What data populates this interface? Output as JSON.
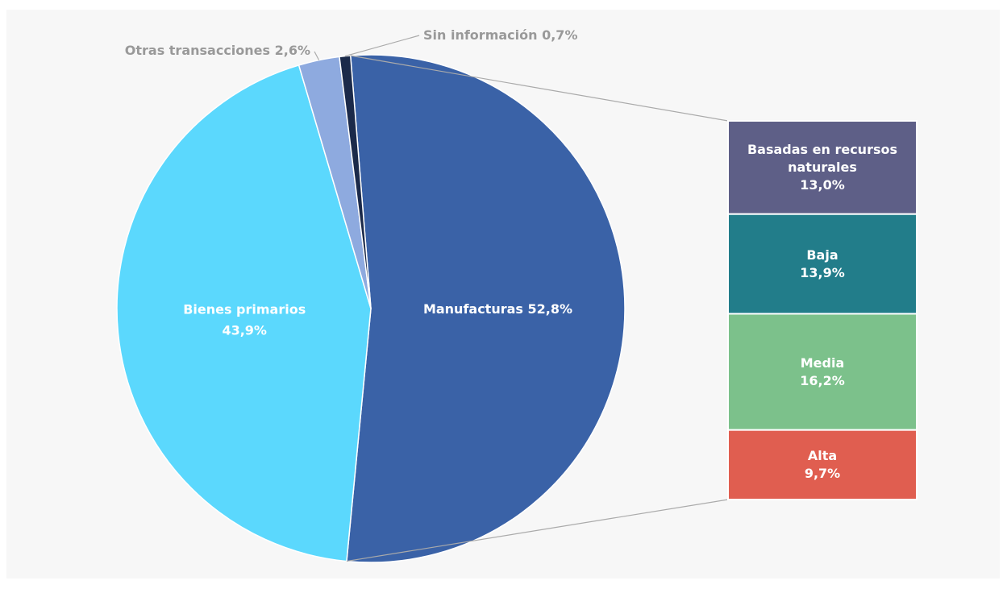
{
  "chart_data": {
    "type": "pie",
    "categories": [
      "Manufacturas",
      "Bienes primarios",
      "Otras transacciones",
      "Sin información"
    ],
    "values": [
      52.8,
      43.9,
      2.6,
      0.7
    ],
    "value_labels": [
      "52,8%",
      "43,9%",
      "2,6%",
      "0,7%"
    ],
    "colors": [
      "#3a62a7",
      "#5bd8fd",
      "#8eaadf",
      "#1b2a4a"
    ],
    "breakdown": {
      "categories": [
        "Basadas en recursos naturales",
        "Baja",
        "Media",
        "Alta"
      ],
      "values": [
        13.0,
        13.9,
        16.2,
        9.7
      ],
      "value_labels": [
        "13,0%",
        "13,9%",
        "16,2%",
        "9,7%"
      ],
      "colors": [
        "#5e5f87",
        "#227d8a",
        "#7cc18b",
        "#e05e50"
      ]
    }
  }
}
